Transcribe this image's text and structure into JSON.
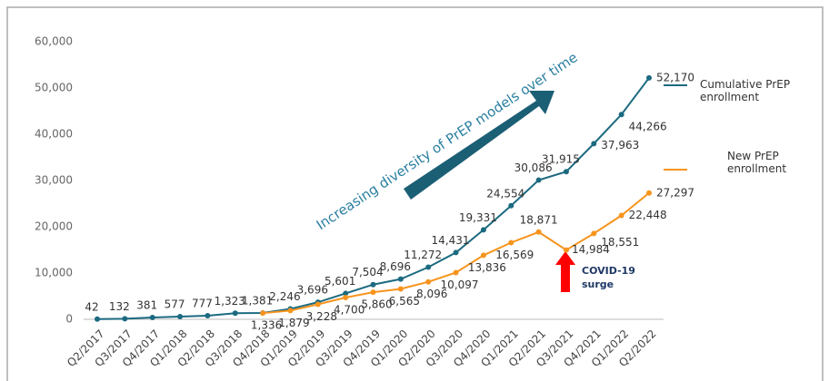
{
  "chart_data": {
    "type": "line",
    "categories": [
      "Q2/2017",
      "Q3/2017",
      "Q4/2017",
      "Q1/2018",
      "Q2/2018",
      "Q3/2018",
      "Q4/2018",
      "Q1/2019",
      "Q2/2019",
      "Q3/2019",
      "Q4/2019",
      "Q1/2020",
      "Q2/2020",
      "Q3/2020",
      "Q4/2020",
      "Q1/2021",
      "Q2/2021",
      "Q3/2021",
      "Q4/2021",
      "Q1/2022",
      "Q2/2022"
    ],
    "series": [
      {
        "name": "Cumulative PrEP enrollment",
        "color": "#1b6a80",
        "values": [
          42,
          132,
          381,
          577,
          777,
          1323,
          1381,
          2246,
          3696,
          5601,
          7504,
          8696,
          11272,
          14431,
          19331,
          24554,
          30086,
          31915,
          37963,
          44266,
          52170
        ],
        "value_labels": [
          "42",
          "132",
          "381",
          "577",
          "777",
          "1,323",
          "1,381",
          "2,246",
          "3,696",
          "5,601",
          "7,504",
          "8,696",
          "11,272",
          "14,431",
          "19,331",
          "24,554",
          "30,086",
          "31,915",
          "37,963",
          "44,266",
          "52,170"
        ]
      },
      {
        "name": "New PrEP enrollment",
        "color": "#f7941d",
        "values": [
          null,
          null,
          null,
          null,
          null,
          null,
          1336,
          1879,
          3228,
          4700,
          5860,
          6565,
          8096,
          10097,
          13836,
          16569,
          18871,
          14984,
          18551,
          22448,
          27297
        ],
        "value_labels": [
          null,
          null,
          null,
          null,
          null,
          null,
          "1,336",
          "1,879",
          "3,228",
          "4,700",
          "5,860",
          "6,565",
          "8,096",
          "10,097",
          "13,836",
          "16,569",
          "18,871",
          "14,984",
          "18,551",
          "22,448",
          "27,297"
        ]
      }
    ],
    "ylim": [
      0,
      60000
    ],
    "yticks": [
      0,
      {
        "value": 10000,
        "label": "10,000"
      },
      {
        "value": 20000,
        "label": "20,000"
      },
      {
        "value": 30000,
        "label": "30,000"
      },
      {
        "value": 40000,
        "label": "40,000"
      },
      {
        "value": 50000,
        "label": "50,000"
      },
      {
        "value": 60000,
        "label": "60,000"
      }
    ],
    "grid": false,
    "annotations": {
      "trend": "Increasing diversity of PrEP models over time",
      "covid": [
        "COVID-19",
        "surge"
      ]
    }
  }
}
